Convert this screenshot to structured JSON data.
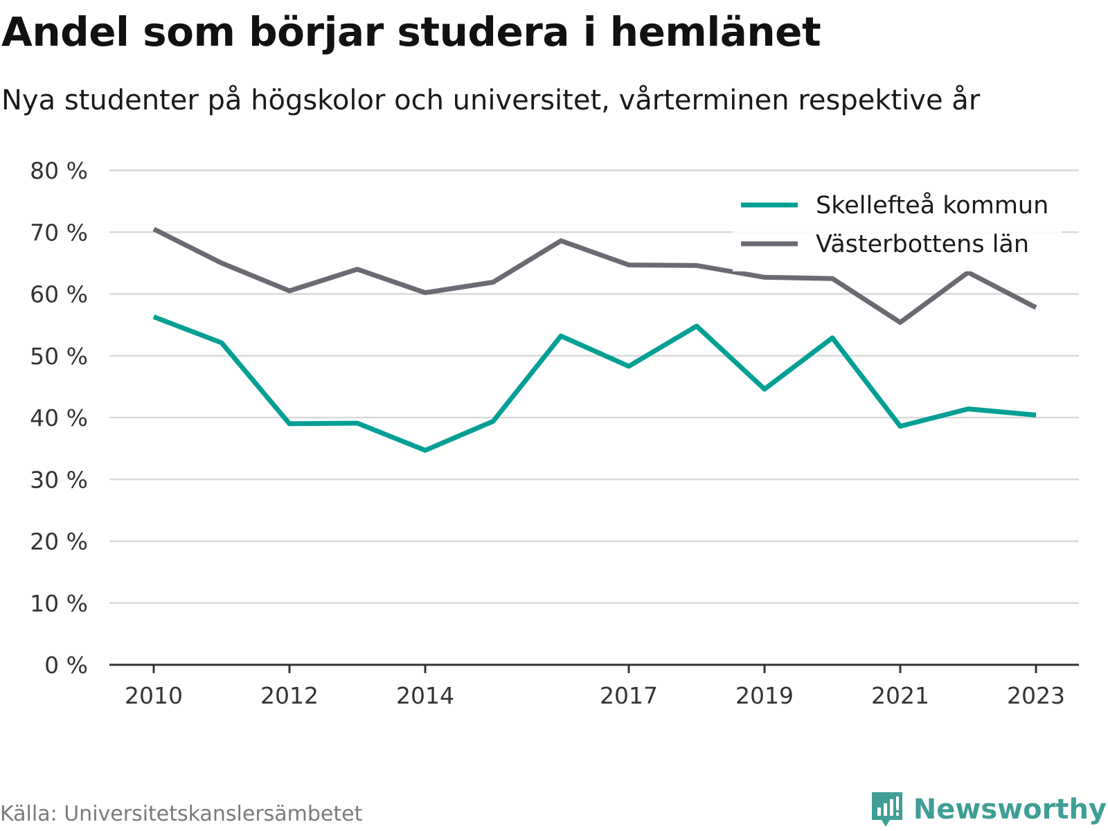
{
  "title": "Andel som börjar studera i hemlänet",
  "subtitle": "Nya studenter på högskolor och universitet, vårterminen respektive år",
  "source": "Källa: Universitetskanslersämbetet",
  "brand": "Newsworthy",
  "colors": {
    "skelleftea": "#009f94",
    "vasterbotten": "#6b6a72",
    "grid": "#d9d9d9",
    "axis": "#333333",
    "brand": "#3f9e96"
  },
  "chart_data": {
    "type": "line",
    "xlabel": "",
    "ylabel": "",
    "ylim": [
      0,
      80
    ],
    "y_ticks": [
      0,
      10,
      20,
      30,
      40,
      50,
      60,
      70,
      80
    ],
    "y_tick_labels": [
      "0 %",
      "10 %",
      "20 %",
      "30 %",
      "40 %",
      "50 %",
      "60 %",
      "70 %",
      "80 %"
    ],
    "x": [
      2010,
      2011,
      2012,
      2013,
      2014,
      2015,
      2016,
      2017,
      2018,
      2019,
      2020,
      2021,
      2022,
      2023
    ],
    "x_ticks": [
      2010,
      2012,
      2014,
      2017,
      2019,
      2021,
      2023
    ],
    "x_tick_labels": [
      "2010",
      "2012",
      "2014",
      "2017",
      "2019",
      "2021",
      "2023"
    ],
    "grid": true,
    "legend_position": "top-right",
    "series": [
      {
        "name": "Skellefteå kommun",
        "color": "#009f94",
        "values": [
          56.3,
          52.1,
          39.0,
          39.1,
          34.7,
          39.4,
          53.2,
          48.3,
          54.8,
          44.6,
          52.9,
          38.6,
          41.4,
          40.4
        ]
      },
      {
        "name": "Västerbottens län",
        "color": "#6b6a72",
        "values": [
          70.5,
          65.0,
          60.5,
          64.0,
          60.2,
          61.9,
          68.6,
          64.7,
          64.6,
          62.7,
          62.5,
          55.4,
          63.5,
          57.8
        ]
      }
    ]
  }
}
